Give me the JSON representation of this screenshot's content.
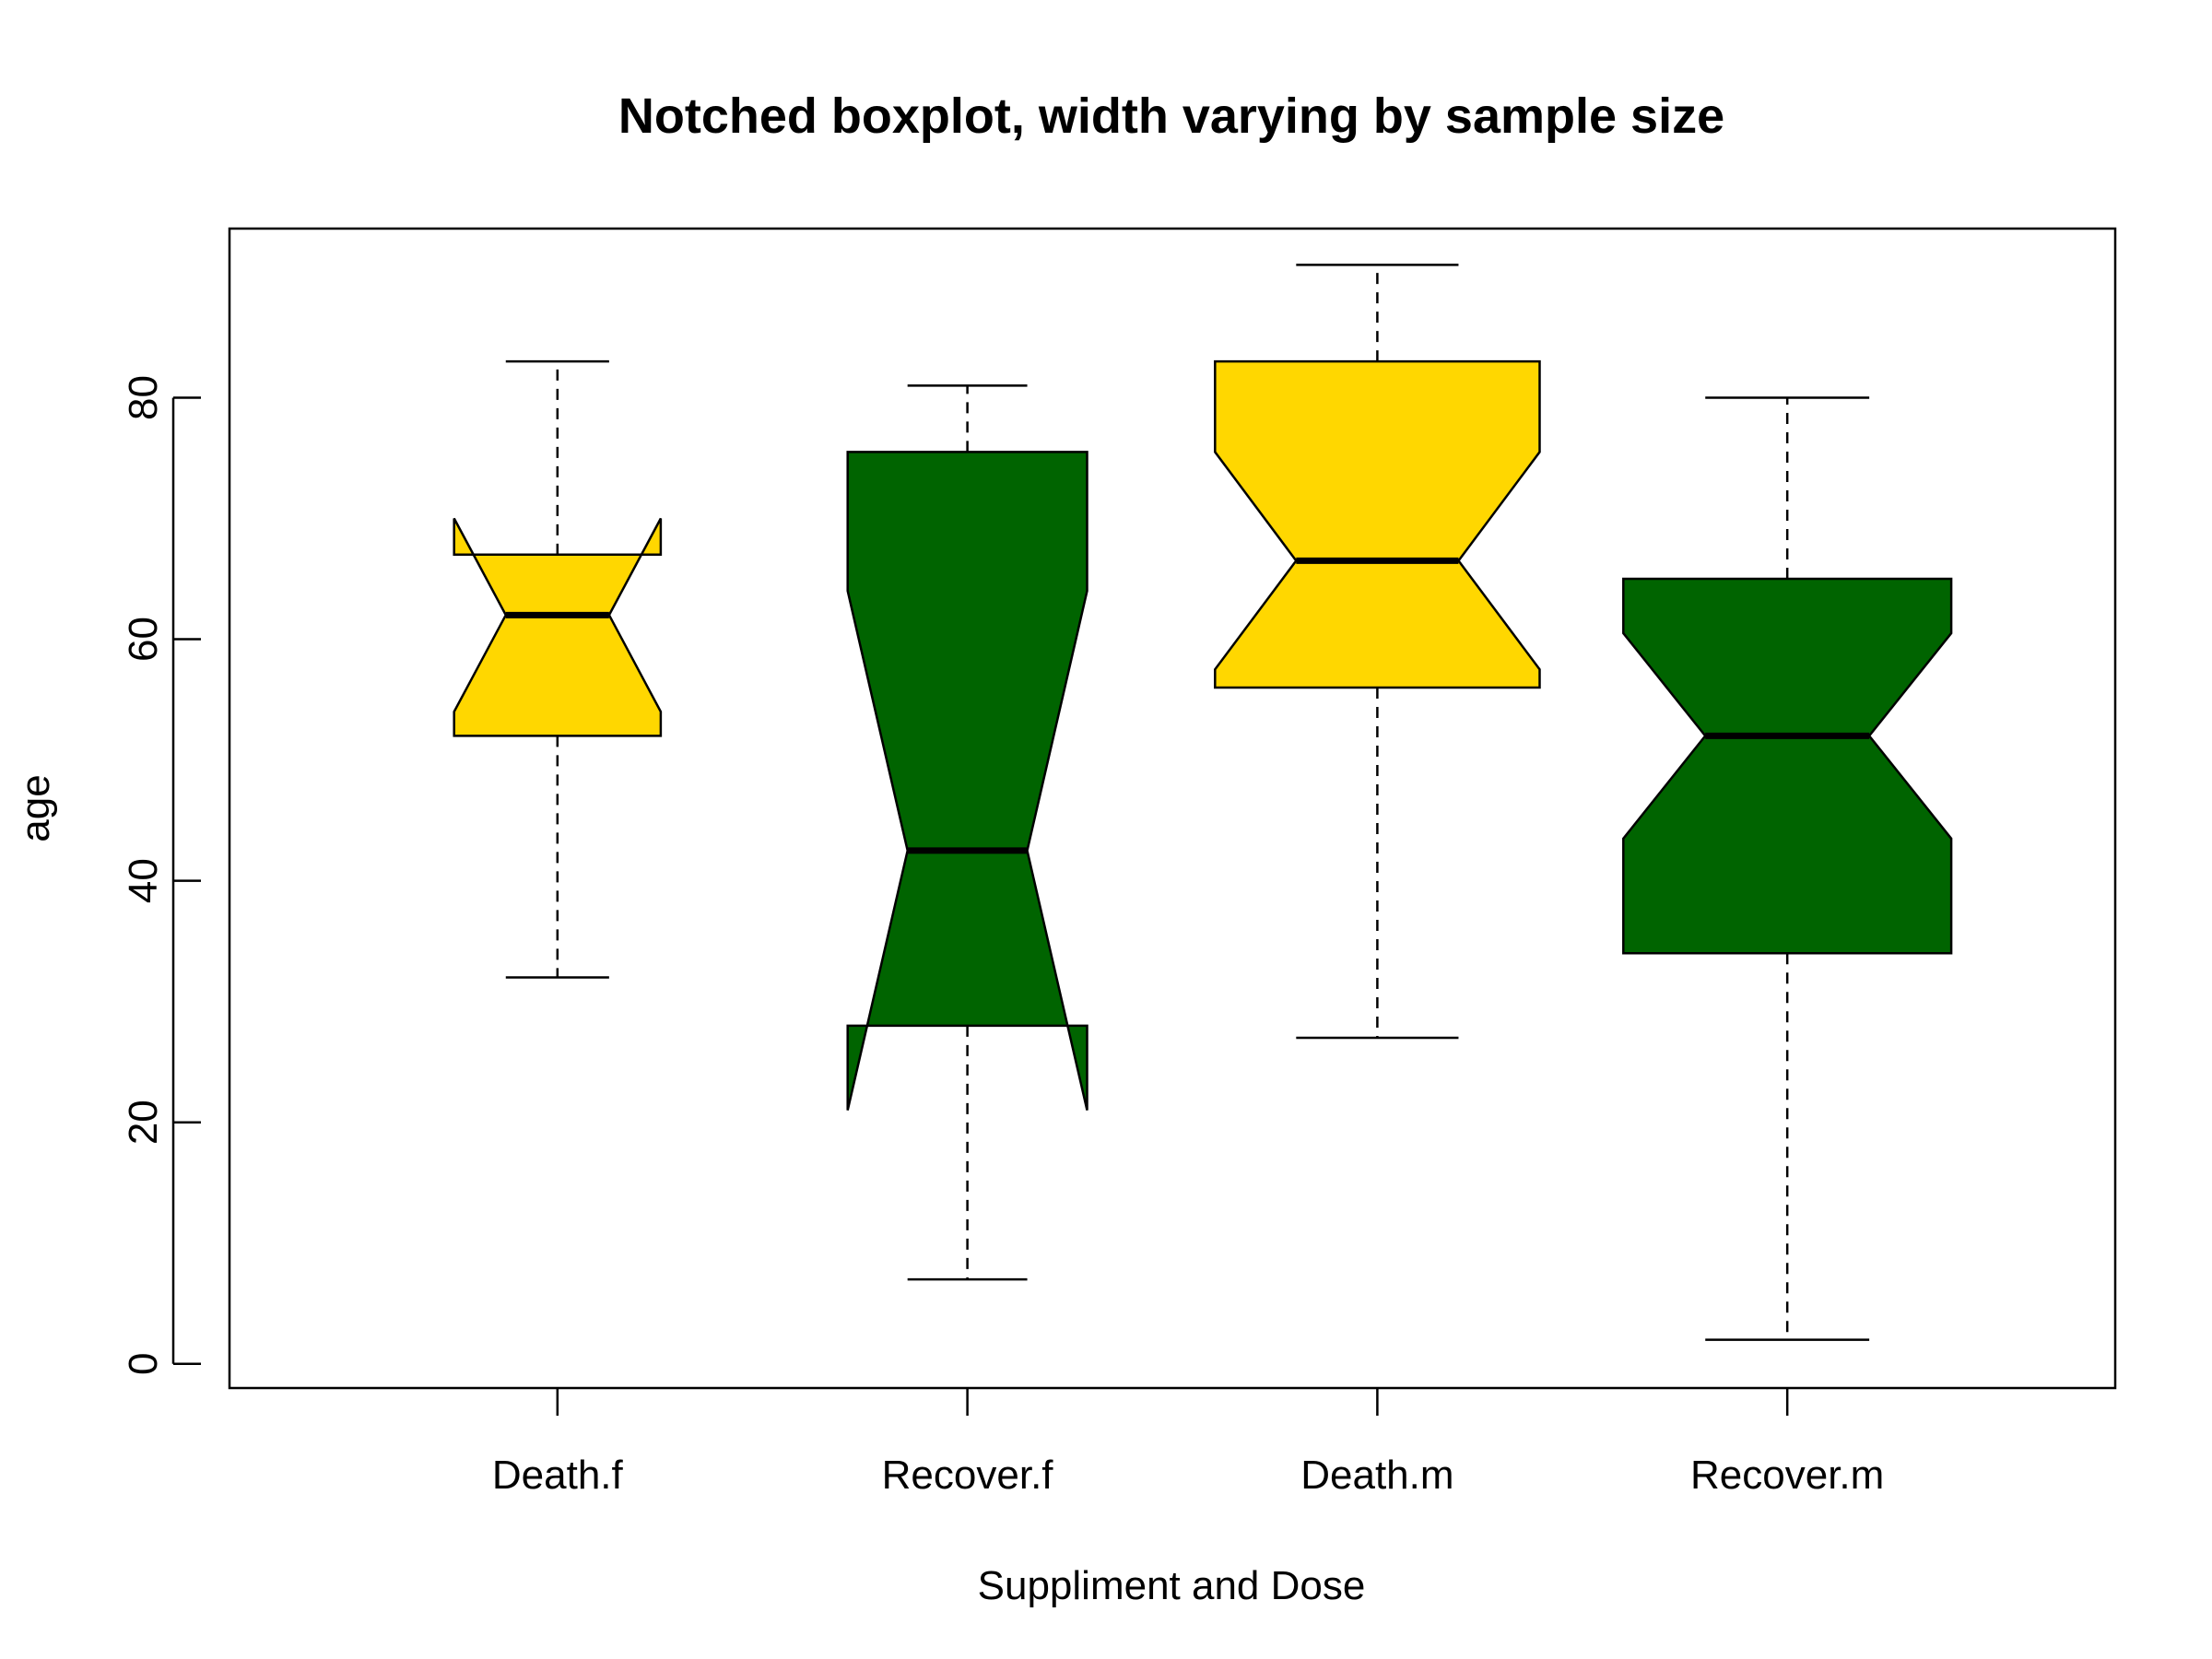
{
  "chart_data": {
    "type": "boxplot",
    "notched": true,
    "title": "Notched boxplot, width varying by sample size",
    "xlabel": "Suppliment and Dose",
    "ylabel": "age",
    "ylim": [
      -2,
      94
    ],
    "y_ticks": [
      0,
      20,
      40,
      60,
      80
    ],
    "grid": false,
    "legend": "none",
    "categories": [
      "Death.f",
      "Recover.f",
      "Death.m",
      "Recover.m"
    ],
    "boxes": [
      {
        "category": "Death.f",
        "min": 32,
        "q1": 52,
        "median": 62,
        "q3": 67,
        "max": 83,
        "notch_low": 54,
        "notch_high": 70,
        "relative_width": 0.63,
        "color": "#FFD700"
      },
      {
        "category": "Recover.f",
        "min": 7,
        "q1": 28,
        "median": 42.5,
        "q3": 75.5,
        "max": 81,
        "notch_low": 21,
        "notch_high": 64,
        "relative_width": 0.73,
        "color": "#006400"
      },
      {
        "category": "Death.m",
        "min": 27,
        "q1": 56,
        "median": 66.5,
        "q3": 83,
        "max": 91,
        "notch_low": 57.5,
        "notch_high": 75.5,
        "relative_width": 0.99,
        "color": "#FFD700"
      },
      {
        "category": "Recover.m",
        "min": 2,
        "q1": 34,
        "median": 52,
        "q3": 65,
        "max": 80,
        "notch_low": 43.5,
        "notch_high": 60.5,
        "relative_width": 1.0,
        "color": "#006400"
      }
    ]
  }
}
